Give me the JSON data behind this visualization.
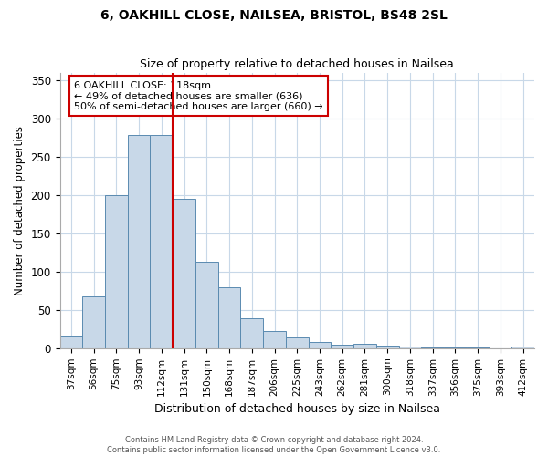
{
  "title": "6, OAKHILL CLOSE, NAILSEA, BRISTOL, BS48 2SL",
  "subtitle": "Size of property relative to detached houses in Nailsea",
  "xlabel": "Distribution of detached houses by size in Nailsea",
  "ylabel": "Number of detached properties",
  "categories": [
    "37sqm",
    "56sqm",
    "75sqm",
    "93sqm",
    "112sqm",
    "131sqm",
    "150sqm",
    "168sqm",
    "187sqm",
    "206sqm",
    "225sqm",
    "243sqm",
    "262sqm",
    "281sqm",
    "300sqm",
    "318sqm",
    "337sqm",
    "356sqm",
    "375sqm",
    "393sqm",
    "412sqm"
  ],
  "values": [
    17,
    68,
    200,
    278,
    278,
    195,
    113,
    79,
    39,
    23,
    14,
    8,
    5,
    6,
    3,
    2,
    1,
    1,
    1,
    0,
    2
  ],
  "bar_color": "#c8d8e8",
  "bar_edge_color": "#5a8ab0",
  "vline_x_index": 4.5,
  "vline_color": "#cc0000",
  "annotation_title": "6 OAKHILL CLOSE: 118sqm",
  "annotation_line1": "← 49% of detached houses are smaller (636)",
  "annotation_line2": "50% of semi-detached houses are larger (660) →",
  "annotation_box_color": "#ffffff",
  "annotation_box_edge": "#cc0000",
  "ylim": [
    0,
    360
  ],
  "yticks": [
    0,
    50,
    100,
    150,
    200,
    250,
    300,
    350
  ],
  "footer1": "Contains HM Land Registry data © Crown copyright and database right 2024.",
  "footer2": "Contains public sector information licensed under the Open Government Licence v3.0.",
  "bg_color": "#ffffff",
  "grid_color": "#c8d8e8"
}
